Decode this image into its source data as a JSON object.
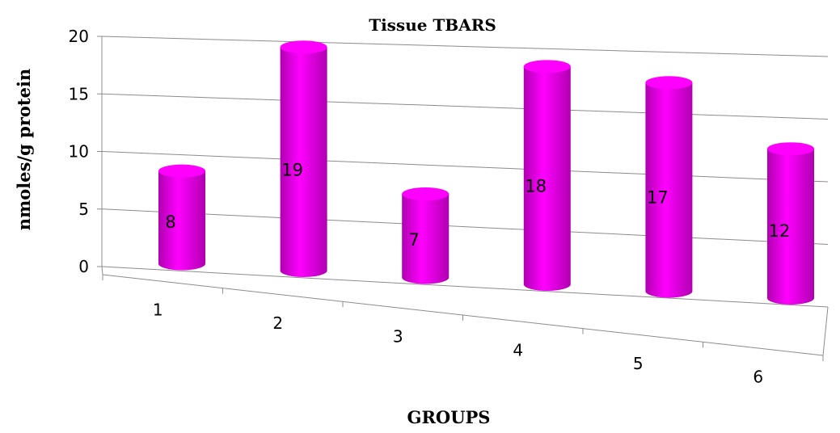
{
  "chart_data": {
    "type": "bar",
    "style": "3d-cylinder",
    "title": "Tissue TBARS",
    "xlabel": "GROUPS",
    "ylabel": "nmoles/g protein",
    "categories": [
      "1",
      "2",
      "3",
      "4",
      "5",
      "6"
    ],
    "values": [
      8,
      19,
      7,
      18,
      17,
      12
    ],
    "data_labels": [
      "8",
      "19",
      "7",
      "18",
      "17",
      "12"
    ],
    "yticks": [
      "0",
      "5",
      "10",
      "15",
      "20"
    ],
    "ylim": [
      0,
      20
    ],
    "grid": true,
    "legend": "none",
    "bar_color": "#ff00ff",
    "bar_dark_color": "#b000b0"
  }
}
